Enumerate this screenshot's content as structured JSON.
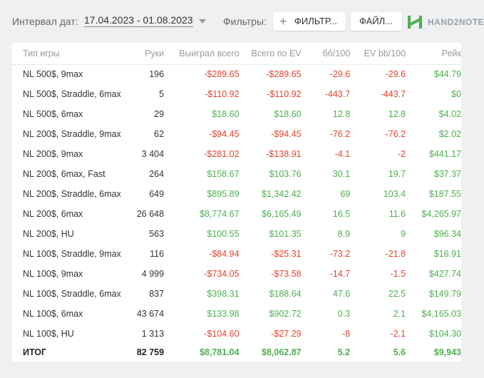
{
  "toolbar": {
    "date_label": "Интервал дат:",
    "date_range": "17.04.2023 - 01.08.2023",
    "filters_label": "Фильтры:",
    "filters_button": "ФИЛЬТР...",
    "files_button": "ФАЙЛ...",
    "logo_text": "HAND2NOTE"
  },
  "colors": {
    "negative": "#e0442c",
    "positive": "#4caf50",
    "brand": "#4caf50"
  },
  "table": {
    "headers": [
      "Тип игры",
      "Руки",
      "Выиграл всего",
      "Всего по EV",
      "бб/100",
      "EV bb/100",
      "Рейк"
    ],
    "rows": [
      {
        "game": "NL 500$, 9max",
        "hands": "196",
        "won": "-$289.65",
        "ev": "-$289.65",
        "bb100": "-29.6",
        "evbb100": "-29.6",
        "rake": "$44.79"
      },
      {
        "game": "NL 500$, Straddle, 6max",
        "hands": "5",
        "won": "-$110.92",
        "ev": "-$110.92",
        "bb100": "-443.7",
        "evbb100": "-443.7",
        "rake": "$0"
      },
      {
        "game": "NL 500$, 6max",
        "hands": "29",
        "won": "$18.60",
        "ev": "$18.60",
        "bb100": "12.8",
        "evbb100": "12.8",
        "rake": "$4.02"
      },
      {
        "game": "NL 200$, Straddle, 9max",
        "hands": "62",
        "won": "-$94.45",
        "ev": "-$94.45",
        "bb100": "-76.2",
        "evbb100": "-76.2",
        "rake": "$2.02"
      },
      {
        "game": "NL 200$, 9max",
        "hands": "3 404",
        "won": "-$281.02",
        "ev": "-$138.91",
        "bb100": "-4.1",
        "evbb100": "-2",
        "rake": "$441.17"
      },
      {
        "game": "NL 200$, 6max, Fast",
        "hands": "264",
        "won": "$158.67",
        "ev": "$103.76",
        "bb100": "30.1",
        "evbb100": "19.7",
        "rake": "$37.37"
      },
      {
        "game": "NL 200$, Straddle, 6max",
        "hands": "649",
        "won": "$895.89",
        "ev": "$1,342.42",
        "bb100": "69",
        "evbb100": "103.4",
        "rake": "$187.55"
      },
      {
        "game": "NL 200$, 6max",
        "hands": "26 648",
        "won": "$8,774.67",
        "ev": "$6,165.49",
        "bb100": "16.5",
        "evbb100": "11.6",
        "rake": "$4,265.97"
      },
      {
        "game": "NL 200$, HU",
        "hands": "563",
        "won": "$100.55",
        "ev": "$101.35",
        "bb100": "8.9",
        "evbb100": "9",
        "rake": "$96.34"
      },
      {
        "game": "NL 100$, Straddle, 9max",
        "hands": "116",
        "won": "-$84.94",
        "ev": "-$25.31",
        "bb100": "-73.2",
        "evbb100": "-21.8",
        "rake": "$16.91"
      },
      {
        "game": "NL 100$, 9max",
        "hands": "4 999",
        "won": "-$734.05",
        "ev": "-$73.58",
        "bb100": "-14.7",
        "evbb100": "-1.5",
        "rake": "$427.74"
      },
      {
        "game": "NL 100$, Straddle, 6max",
        "hands": "837",
        "won": "$398.31",
        "ev": "$188.64",
        "bb100": "47.6",
        "evbb100": "22.5",
        "rake": "$149.79"
      },
      {
        "game": "NL 100$, 6max",
        "hands": "43 674",
        "won": "$133.98",
        "ev": "$902.72",
        "bb100": "0.3",
        "evbb100": "2.1",
        "rake": "$4,165.03"
      },
      {
        "game": "NL 100$, HU",
        "hands": "1 313",
        "won": "-$104.60",
        "ev": "-$27.29",
        "bb100": "-8",
        "evbb100": "-2.1",
        "rake": "$104.30"
      }
    ],
    "total": {
      "game": "ИТОГ",
      "hands": "82 759",
      "won": "$8,781.04",
      "ev": "$8,062.87",
      "bb100": "5.2",
      "evbb100": "5.6",
      "rake": "$9,943"
    }
  }
}
